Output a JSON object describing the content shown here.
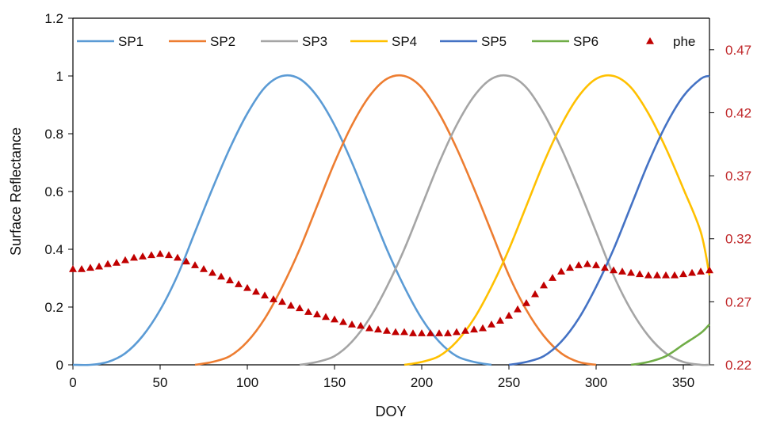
{
  "chart_data": {
    "type": "line",
    "title": "",
    "xlabel": "DOY",
    "ylabel": "Surface Reflectance",
    "xlim": [
      0,
      365
    ],
    "ylim": [
      0,
      1.2
    ],
    "y2lim": [
      0.22,
      0.495
    ],
    "grid": false,
    "legend_position": "top",
    "x_ticks": [
      "0",
      "50",
      "100",
      "150",
      "200",
      "250",
      "300",
      "350"
    ],
    "y_ticks": [
      "0",
      "0.2",
      "0.4",
      "0.6",
      "0.8",
      "1",
      "1.2"
    ],
    "y2_ticks": [
      "0.22",
      "0.27",
      "0.32",
      "0.37",
      "0.42",
      "0.47"
    ],
    "x": [
      0,
      10,
      20,
      30,
      40,
      50,
      60,
      70,
      80,
      90,
      100,
      110,
      120,
      130,
      140,
      150,
      160,
      170,
      180,
      190,
      200,
      210,
      220,
      230,
      240,
      250,
      260,
      270,
      280,
      290,
      300,
      310,
      320,
      330,
      340,
      350,
      360,
      365
    ],
    "series": [
      {
        "name": "SP1",
        "color": "#5b9bd5",
        "axis": "left",
        "values": [
          0,
          0,
          0.01,
          0.04,
          0.1,
          0.19,
          0.31,
          0.46,
          0.61,
          0.75,
          0.87,
          0.96,
          1.0,
          0.99,
          0.93,
          0.83,
          0.7,
          0.55,
          0.4,
          0.27,
          0.16,
          0.08,
          0.03,
          0.01,
          0,
          null,
          null,
          null,
          null,
          null,
          null,
          null,
          null,
          null,
          null,
          null,
          null,
          null
        ]
      },
      {
        "name": "SP2",
        "color": "#ed7d31",
        "axis": "left",
        "values": [
          null,
          null,
          null,
          null,
          null,
          null,
          null,
          0,
          0.01,
          0.03,
          0.08,
          0.16,
          0.27,
          0.4,
          0.55,
          0.7,
          0.83,
          0.93,
          0.99,
          1.0,
          0.96,
          0.87,
          0.75,
          0.61,
          0.46,
          0.31,
          0.19,
          0.1,
          0.04,
          0.01,
          0,
          null,
          null,
          null,
          null,
          null,
          null,
          null
        ]
      },
      {
        "name": "SP3",
        "color": "#a5a5a5",
        "axis": "left",
        "values": [
          null,
          null,
          null,
          null,
          null,
          null,
          null,
          null,
          null,
          null,
          null,
          null,
          null,
          0,
          0.01,
          0.03,
          0.08,
          0.16,
          0.27,
          0.4,
          0.55,
          0.7,
          0.83,
          0.93,
          0.99,
          1.0,
          0.96,
          0.87,
          0.75,
          0.61,
          0.46,
          0.31,
          0.19,
          0.1,
          0.04,
          0.01,
          0,
          0
        ]
      },
      {
        "name": "SP4",
        "color": "#ffc000",
        "axis": "left",
        "values": [
          null,
          null,
          null,
          null,
          null,
          null,
          null,
          null,
          null,
          null,
          null,
          null,
          null,
          null,
          null,
          null,
          null,
          null,
          null,
          0,
          0.01,
          0.03,
          0.08,
          0.16,
          0.27,
          0.4,
          0.55,
          0.7,
          0.83,
          0.93,
          0.99,
          1.0,
          0.96,
          0.87,
          0.75,
          0.61,
          0.46,
          0.31
        ]
      },
      {
        "name": "SP5",
        "color": "#4472c4",
        "axis": "left",
        "values": [
          null,
          null,
          null,
          null,
          null,
          null,
          null,
          null,
          null,
          null,
          null,
          null,
          null,
          null,
          null,
          null,
          null,
          null,
          null,
          null,
          null,
          null,
          null,
          null,
          null,
          0,
          0.01,
          0.03,
          0.08,
          0.16,
          0.27,
          0.4,
          0.55,
          0.7,
          0.83,
          0.93,
          0.99,
          1.0
        ]
      },
      {
        "name": "SP6",
        "color": "#70ad47",
        "axis": "left",
        "values": [
          null,
          null,
          null,
          null,
          null,
          null,
          null,
          null,
          null,
          null,
          null,
          null,
          null,
          null,
          null,
          null,
          null,
          null,
          null,
          null,
          null,
          null,
          null,
          null,
          null,
          null,
          null,
          null,
          null,
          null,
          null,
          null,
          0,
          0.01,
          0.03,
          0.07,
          0.11,
          0.14
        ]
      }
    ],
    "scatter_series": {
      "name": "phe",
      "color": "#c00000",
      "marker": "triangle",
      "axis": "right",
      "x": [
        0,
        5,
        10,
        15,
        20,
        25,
        30,
        35,
        40,
        45,
        50,
        55,
        60,
        65,
        70,
        75,
        80,
        85,
        90,
        95,
        100,
        105,
        110,
        115,
        120,
        125,
        130,
        135,
        140,
        145,
        150,
        155,
        160,
        165,
        170,
        175,
        180,
        185,
        190,
        195,
        200,
        205,
        210,
        215,
        220,
        225,
        230,
        235,
        240,
        245,
        250,
        255,
        260,
        265,
        270,
        275,
        280,
        285,
        290,
        295,
        300,
        305,
        310,
        315,
        320,
        325,
        330,
        335,
        340,
        345,
        350,
        355,
        360,
        365
      ],
      "values": [
        0.296,
        0.296,
        0.297,
        0.298,
        0.3,
        0.301,
        0.303,
        0.305,
        0.306,
        0.307,
        0.308,
        0.307,
        0.305,
        0.302,
        0.299,
        0.296,
        0.293,
        0.29,
        0.287,
        0.284,
        0.281,
        0.278,
        0.275,
        0.272,
        0.27,
        0.267,
        0.265,
        0.262,
        0.26,
        0.258,
        0.256,
        0.254,
        0.252,
        0.251,
        0.249,
        0.248,
        0.247,
        0.246,
        0.246,
        0.245,
        0.245,
        0.245,
        0.245,
        0.245,
        0.246,
        0.247,
        0.248,
        0.249,
        0.252,
        0.255,
        0.259,
        0.264,
        0.269,
        0.276,
        0.283,
        0.289,
        0.294,
        0.297,
        0.299,
        0.3,
        0.299,
        0.297,
        0.295,
        0.294,
        0.293,
        0.292,
        0.291,
        0.291,
        0.291,
        0.291,
        0.292,
        0.293,
        0.294,
        0.295
      ]
    }
  }
}
